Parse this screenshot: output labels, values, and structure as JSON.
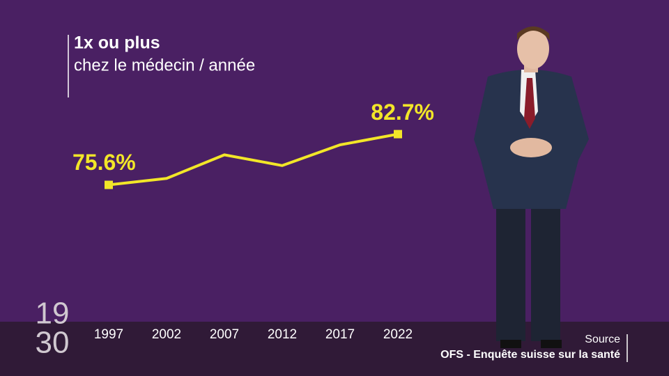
{
  "chart_data": {
    "type": "line",
    "title": "1x ou plus",
    "subtitle": "chez le médecin / année",
    "categories": [
      "1997",
      "2002",
      "2007",
      "2012",
      "2017",
      "2022"
    ],
    "values": [
      75.6,
      76.5,
      79.8,
      78.3,
      81.2,
      82.7
    ],
    "value_labels": [
      "75.6%",
      null,
      null,
      null,
      null,
      "82.7%"
    ],
    "color": "#f2e628",
    "ylim": [
      70,
      85
    ]
  },
  "logo": {
    "line1": "19",
    "line2": "30"
  },
  "source": {
    "label": "Source",
    "text": "OFS - Enquête suisse sur la santé"
  }
}
